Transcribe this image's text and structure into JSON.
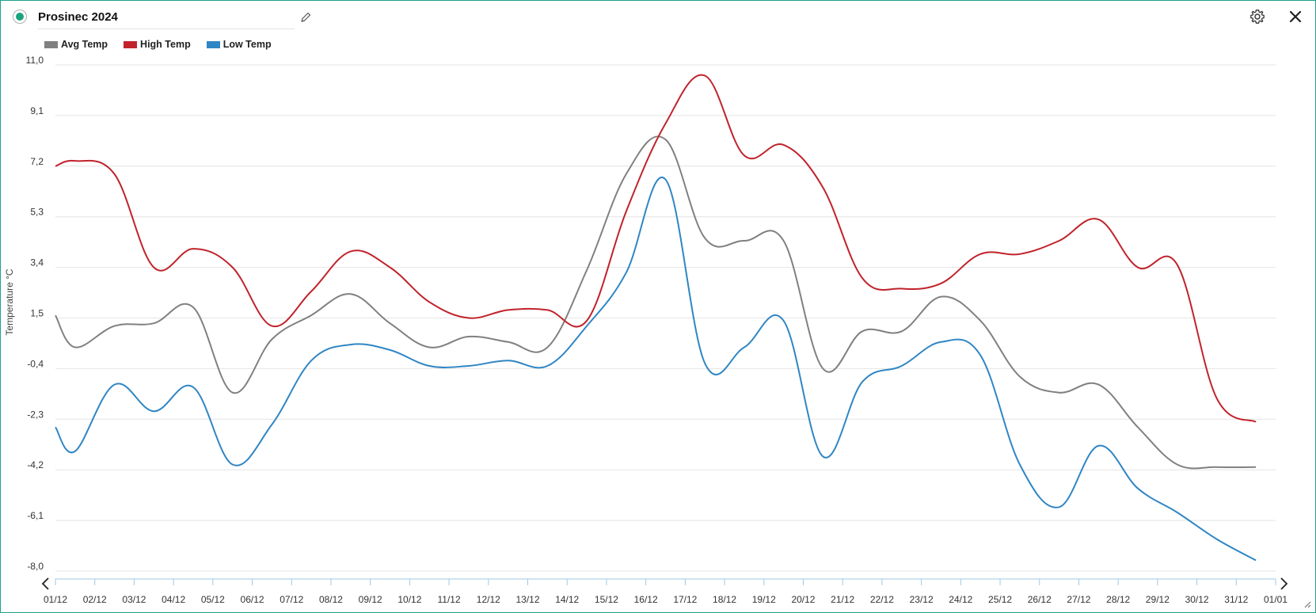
{
  "header": {
    "title": "Prosinec 2024",
    "status_color": "#1aa37f",
    "edit_icon": "pencil-icon",
    "settings_icon": "gear-icon",
    "close_icon": "close-icon"
  },
  "legend": [
    {
      "label": "Avg Temp",
      "color": "#808080"
    },
    {
      "label": "High Temp",
      "color": "#c0232b"
    },
    {
      "label": "Low Temp",
      "color": "#2f86c4"
    }
  ],
  "chart_data": {
    "type": "line",
    "title": "",
    "xlabel": "",
    "ylabel": "Temperature °C",
    "ylim": [
      -8.0,
      11.0
    ],
    "yticks": [
      "11,0",
      "9,1",
      "7,2",
      "5,3",
      "3,4",
      "1,5",
      "-0,4",
      "-2,3",
      "-4,2",
      "-6,1",
      "-8,0"
    ],
    "grid": true,
    "legend_position": "top-left",
    "categories": [
      "01/12",
      "02/12",
      "03/12",
      "04/12",
      "05/12",
      "06/12",
      "07/12",
      "08/12",
      "09/12",
      "10/12",
      "11/12",
      "12/12",
      "13/12",
      "14/12",
      "15/12",
      "16/12",
      "17/12",
      "18/12",
      "19/12",
      "20/12",
      "21/12",
      "22/12",
      "23/12",
      "24/12",
      "25/12",
      "26/12",
      "27/12",
      "28/12",
      "29/12",
      "30/12",
      "31/12",
      "01/01"
    ],
    "series": [
      {
        "name": "Avg Temp",
        "color": "#808080",
        "x": [
          0,
          0.5,
          1.5,
          2.5,
          3.5,
          4.5,
          5.5,
          6.5,
          7.5,
          8.5,
          9.5,
          10.5,
          11.5,
          12.5,
          13.5,
          14.5,
          15.5,
          16.5,
          17.5,
          18.5,
          19.5,
          20.5,
          21.5,
          22.5,
          23.5,
          24.5,
          25.5,
          26.5,
          27.5,
          28.5,
          29.5,
          30.5
        ],
        "values": [
          1.6,
          0.4,
          1.2,
          1.3,
          1.9,
          -1.3,
          0.7,
          1.6,
          2.4,
          1.3,
          0.4,
          0.8,
          0.6,
          0.4,
          3.3,
          6.9,
          8.2,
          4.5,
          4.4,
          4.4,
          -0.4,
          1.0,
          1.0,
          2.3,
          1.4,
          -0.7,
          -1.3,
          -1.0,
          -2.6,
          -4.0,
          -4.1,
          -4.1
        ]
      },
      {
        "name": "High Temp",
        "color": "#c0232b",
        "x": [
          0,
          0.5,
          1.5,
          2.5,
          3.5,
          4.5,
          5.5,
          6.5,
          7.5,
          8.5,
          9.5,
          10.5,
          11.5,
          12.5,
          13.5,
          14.5,
          15.5,
          16.5,
          17.5,
          18.5,
          19.5,
          20.5,
          21.5,
          22.5,
          23.5,
          24.5,
          25.5,
          26.5,
          27.5,
          28.5,
          29.5,
          30.5
        ],
        "values": [
          7.2,
          7.4,
          6.9,
          3.4,
          4.1,
          3.4,
          1.2,
          2.5,
          4.0,
          3.4,
          2.1,
          1.5,
          1.8,
          1.8,
          1.4,
          5.5,
          8.8,
          10.6,
          7.6,
          8.0,
          6.4,
          3.0,
          2.6,
          2.8,
          3.9,
          3.9,
          4.4,
          5.2,
          3.4,
          3.5,
          -1.5,
          -2.4
        ]
      },
      {
        "name": "Low Temp",
        "color": "#2f86c4",
        "x": [
          0,
          0.5,
          1.5,
          2.5,
          3.5,
          4.5,
          5.5,
          6.5,
          7.5,
          8.5,
          9.5,
          10.5,
          11.5,
          12.5,
          13.5,
          14.5,
          15.5,
          16.5,
          17.5,
          18.5,
          19.5,
          20.5,
          21.5,
          22.5,
          23.5,
          24.5,
          25.5,
          26.5,
          27.5,
          28.5,
          29.5,
          30.5
        ],
        "values": [
          -2.6,
          -3.5,
          -1.0,
          -2.0,
          -1.1,
          -4.0,
          -2.5,
          -0.1,
          0.5,
          0.3,
          -0.3,
          -0.3,
          -0.1,
          -0.3,
          1.2,
          3.2,
          6.7,
          -0.2,
          0.4,
          1.4,
          -3.7,
          -0.9,
          -0.3,
          0.6,
          0.1,
          -4.0,
          -5.6,
          -3.3,
          -4.9,
          -5.8,
          -6.8,
          -7.6
        ]
      }
    ]
  },
  "nav": {
    "prev_icon": "chevron-left-icon",
    "next_icon": "chevron-right-icon"
  }
}
